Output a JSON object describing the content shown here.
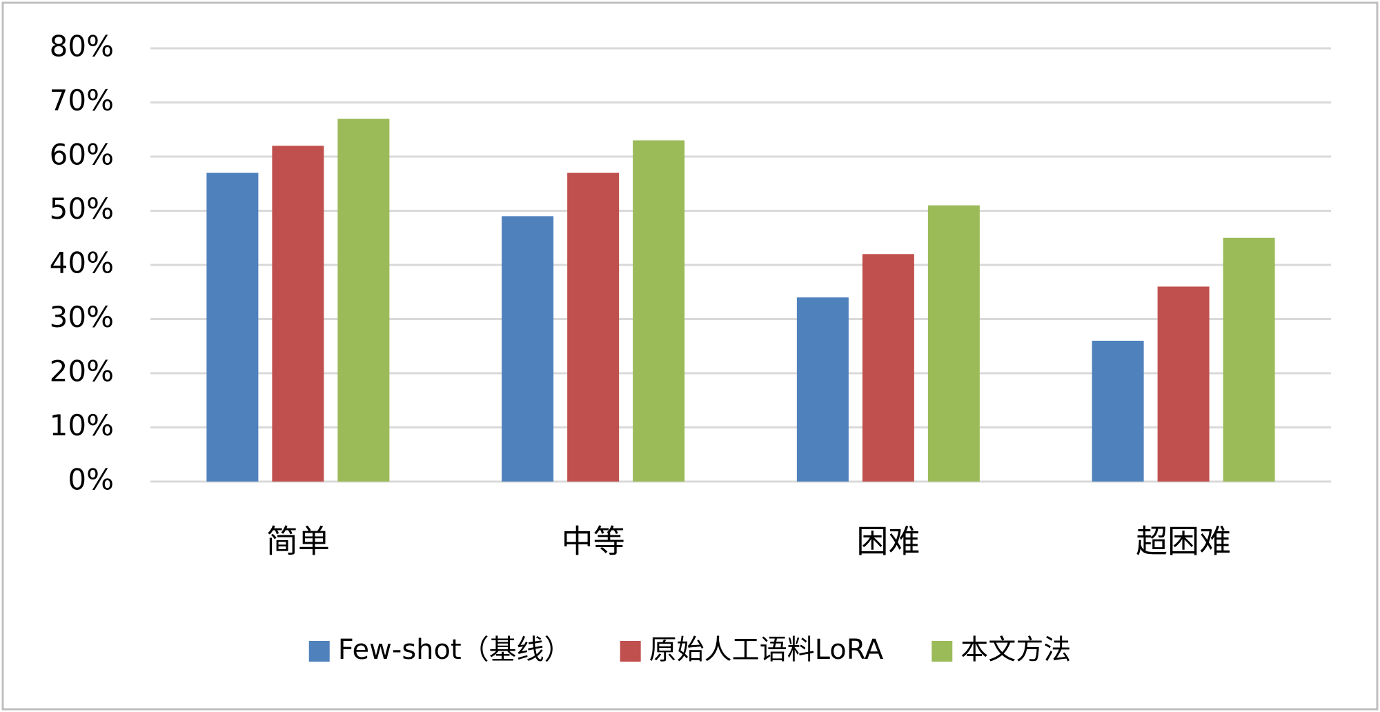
{
  "chart_data": {
    "type": "bar",
    "categories": [
      "简单",
      "中等",
      "困难",
      "超困难"
    ],
    "series": [
      {
        "name": "Few-shot（基线）",
        "color": "#4f81bd",
        "values": [
          57,
          49,
          34,
          26
        ]
      },
      {
        "name": "原始人工语料LoRA",
        "color": "#c0504d",
        "values": [
          62,
          57,
          42,
          36
        ]
      },
      {
        "name": "本文方法",
        "color": "#9bbb59",
        "values": [
          67,
          63,
          51,
          45
        ]
      }
    ],
    "ylim": [
      0,
      80
    ],
    "yticks": [
      {
        "value": 0,
        "label": "0%"
      },
      {
        "value": 10,
        "label": "10%"
      },
      {
        "value": 20,
        "label": "20%"
      },
      {
        "value": 30,
        "label": "30%"
      },
      {
        "value": 40,
        "label": "40%"
      },
      {
        "value": 50,
        "label": "50%"
      },
      {
        "value": 60,
        "label": "60%"
      },
      {
        "value": 70,
        "label": "70%"
      },
      {
        "value": 80,
        "label": "80%"
      }
    ],
    "grid": true,
    "legend": "bottom"
  }
}
